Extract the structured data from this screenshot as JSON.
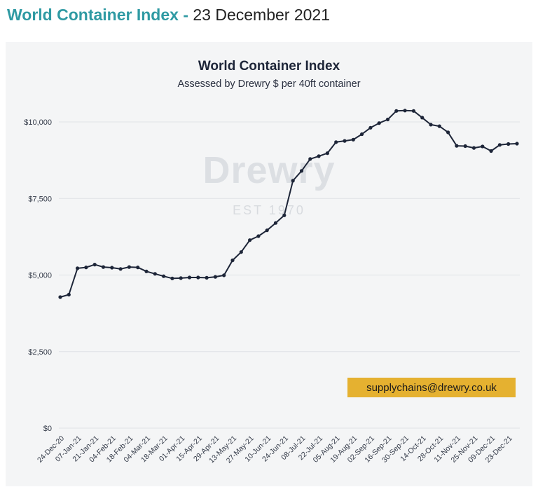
{
  "header": {
    "title_bold": "World Container Index -",
    "title_date": "23 December 2021"
  },
  "watermark": {
    "brand": "Drewry",
    "established": "EST 1970"
  },
  "contact": "supplychains@drewry.co.uk",
  "colors": {
    "header_accent": "#2f9aa3",
    "line": "#1d2538",
    "badge": "#e5b130",
    "panel": "#f4f5f6"
  },
  "chart_data": {
    "type": "line",
    "title": "World Container Index",
    "subtitle": "Assessed by Drewry  $ per 40ft container",
    "xlabel": "",
    "ylabel": "",
    "ylim": [
      0,
      10500
    ],
    "y_ticks": [
      0,
      2500,
      5000,
      7500,
      10000
    ],
    "y_tick_labels": [
      "$0",
      "$2,500",
      "$5,000",
      "$7,500",
      "$10,000"
    ],
    "grid": "horizontal",
    "x_tick_labels": [
      "24-Dec-20",
      "07-Jan-21",
      "21-Jan-21",
      "04-Feb-21",
      "18-Feb-21",
      "04-Mar-21",
      "18-Mar-21",
      "01-Apr-21",
      "15-Apr-21",
      "29-Apr-21",
      "13-May-21",
      "27-May-21",
      "10-Jun-21",
      "24-Jun-21",
      "08-Jul-21",
      "22-Jul-21",
      "05-Aug-21",
      "19-Aug-21",
      "02-Sep-21",
      "16-Sep-21",
      "30-Sep-21",
      "14-Oct-21",
      "28-Oct-21",
      "11-Nov-21",
      "25-Nov-21",
      "09-Dec-21",
      "23-Dec-21"
    ],
    "series": [
      {
        "values": [
          4280,
          4360,
          5220,
          5250,
          5340,
          5260,
          5240,
          5200,
          5260,
          5250,
          5120,
          5040,
          4960,
          4890,
          4900,
          4920,
          4920,
          4910,
          4940,
          4990,
          5480,
          5750,
          6140,
          6270,
          6460,
          6700,
          6950,
          8080,
          8400,
          8790,
          8880,
          8980,
          9340,
          9380,
          9420,
          9600,
          9810,
          9960,
          10080,
          10360,
          10370,
          10360,
          10140,
          9910,
          9860,
          9660,
          9220,
          9210,
          9150,
          9200,
          9050,
          9250,
          9280,
          9290
        ]
      }
    ]
  }
}
